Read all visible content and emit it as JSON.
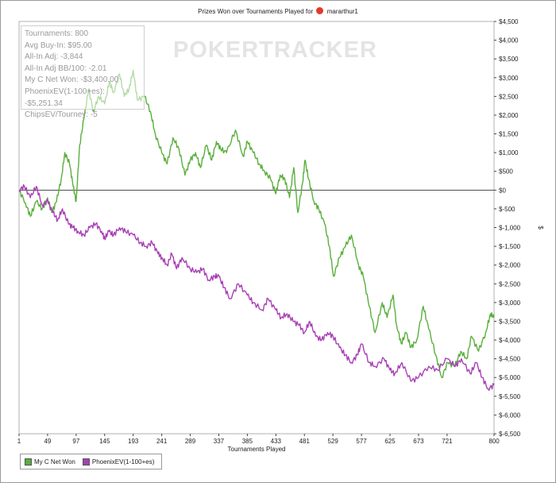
{
  "title": {
    "text_before": "Prizes Won over Tournaments Played for",
    "player": "mararthur1"
  },
  "watermark": "POKERTRACKER",
  "stats": [
    "Tournaments: 800",
    "Avg Buy-In: $95.00",
    "All-In Adj: -3,844",
    "All-In Adj BB/100: -2.01",
    "My C Net Won: -$3,400.00",
    "PhoenixEV(1-100+es): -$5,251.34",
    "ChipsEV/Tourney: -5"
  ],
  "legend": [
    {
      "label": "My C Net Won",
      "color": "#5aaf3c"
    },
    {
      "label": "PhoenixEV(1-100+es)",
      "color": "#a83fb5"
    }
  ],
  "chart_data": {
    "type": "line",
    "xlabel": "Tournaments Played",
    "ylabel": "$",
    "x_ticks": [
      "1",
      "49",
      "97",
      "145",
      "193",
      "241",
      "289",
      "337",
      "385",
      "433",
      "481",
      "529",
      "577",
      "625",
      "673",
      "721",
      "800"
    ],
    "x_tick_values": [
      1,
      49,
      97,
      145,
      193,
      241,
      289,
      337,
      385,
      433,
      481,
      529,
      577,
      625,
      673,
      721,
      800
    ],
    "y_ticks": [
      "$4,500",
      "$4,000",
      "$3,500",
      "$3,000",
      "$2,500",
      "$2,000",
      "$1,500",
      "$1,000",
      "$500",
      "$0",
      "$-500",
      "$-1,000",
      "$-1,500",
      "$-2,000",
      "$-2,500",
      "$-3,000",
      "$-3,500",
      "$-4,000",
      "$-4,500",
      "$-5,000",
      "$-5,500",
      "$-6,000",
      "$-6,500"
    ],
    "y_tick_values": [
      4500,
      4000,
      3500,
      3000,
      2500,
      2000,
      1500,
      1000,
      500,
      0,
      -500,
      -1000,
      -1500,
      -2000,
      -2500,
      -3000,
      -3500,
      -4000,
      -4500,
      -5000,
      -5500,
      -6000,
      -6500
    ],
    "xlim": [
      1,
      800
    ],
    "ylim": [
      -6500,
      4500
    ],
    "zero_line": true,
    "series": [
      {
        "name": "My C Net Won",
        "color": "#5aaf3c",
        "x": [
          1,
          12,
          20,
          30,
          40,
          49,
          56,
          64,
          72,
          78,
          86,
          92,
          97,
          103,
          110,
          118,
          126,
          135,
          145,
          153,
          160,
          170,
          178,
          186,
          193,
          200,
          212,
          222,
          230,
          241,
          250,
          260,
          270,
          280,
          289,
          298,
          306,
          316,
          325,
          333,
          340,
          350,
          365,
          378,
          385,
          395,
          405,
          414,
          424,
          433,
          440,
          448,
          456,
          463,
          470,
          478,
          482,
          488,
          497,
          505,
          515,
          523,
          530,
          540,
          550,
          560,
          572,
          580,
          590,
          600,
          612,
          620,
          630,
          636,
          644,
          652,
          660,
          670,
          681,
          690,
          702,
          712,
          722,
          734,
          744,
          754,
          762,
          774,
          786,
          794,
          800
        ],
        "y": [
          0,
          -350,
          -700,
          -300,
          -500,
          -200,
          -600,
          -300,
          300,
          1000,
          700,
          100,
          -300,
          1200,
          1900,
          2700,
          2100,
          2500,
          2300,
          2900,
          2600,
          3100,
          2500,
          2700,
          3200,
          2400,
          2500,
          2100,
          1500,
          1000,
          700,
          1400,
          1100,
          400,
          800,
          1000,
          600,
          1200,
          800,
          1300,
          1100,
          1000,
          1600,
          900,
          1300,
          1000,
          700,
          500,
          300,
          -100,
          400,
          300,
          -200,
          600,
          -600,
          200,
          800,
          300,
          -300,
          -500,
          -900,
          -1500,
          -2300,
          -1800,
          -1500,
          -1200,
          -2000,
          -2300,
          -3100,
          -3800,
          -3000,
          -3400,
          -2800,
          -3600,
          -4100,
          -3800,
          -4200,
          -4000,
          -3100,
          -3700,
          -4400,
          -5000,
          -4600,
          -4700,
          -4300,
          -4500,
          -3900,
          -4300,
          -3800,
          -3300,
          -3400
        ]
      },
      {
        "name": "PhoenixEV(1-100+es)",
        "color": "#a83fb5",
        "x": [
          1,
          10,
          20,
          30,
          40,
          49,
          58,
          66,
          74,
          84,
          92,
          100,
          110,
          120,
          130,
          140,
          145,
          152,
          160,
          170,
          180,
          193,
          205,
          215,
          225,
          235,
          241,
          250,
          258,
          266,
          275,
          289,
          300,
          310,
          320,
          330,
          337,
          346,
          356,
          370,
          385,
          395,
          410,
          420,
          433,
          442,
          452,
          462,
          472,
          481,
          490,
          500,
          510,
          520,
          529,
          540,
          550,
          560,
          570,
          577,
          590,
          600,
          615,
          625,
          633,
          645,
          660,
          673,
          690,
          705,
          721,
          735,
          745,
          760,
          770,
          780,
          790,
          800
        ],
        "y": [
          0,
          100,
          -200,
          100,
          -400,
          -300,
          -600,
          -800,
          -500,
          -900,
          -1000,
          -1100,
          -1200,
          -1000,
          -900,
          -1100,
          -1300,
          -1100,
          -1200,
          -1000,
          -1100,
          -1200,
          -1400,
          -1500,
          -1400,
          -1700,
          -1800,
          -2000,
          -1700,
          -2100,
          -1800,
          -2100,
          -2200,
          -2100,
          -2400,
          -2300,
          -2300,
          -2600,
          -2900,
          -2500,
          -2800,
          -3000,
          -3200,
          -2900,
          -3200,
          -3400,
          -3300,
          -3500,
          -3600,
          -3800,
          -3500,
          -3900,
          -4000,
          -3800,
          -3900,
          -4200,
          -4400,
          -4600,
          -4400,
          -4100,
          -4600,
          -4700,
          -4500,
          -4800,
          -4900,
          -4600,
          -5100,
          -5000,
          -4700,
          -4800,
          -4500,
          -4700,
          -4500,
          -4900,
          -4600,
          -5000,
          -5300,
          -5200
        ]
      }
    ]
  }
}
